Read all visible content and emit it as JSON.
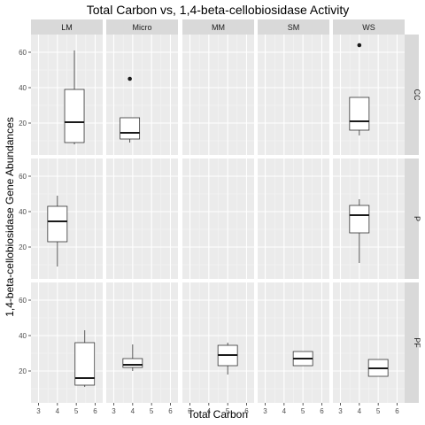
{
  "chart_data": {
    "type": "box",
    "title": "Total Carbon vs, 1,4-beta-cellobiosidase Activity",
    "xlabel": "Total Carbon",
    "ylabel": "1,4-beta-cellobiosidase Gene Abundances",
    "xlim": [
      2.6,
      6.4
    ],
    "ylim": [
      2,
      70
    ],
    "x_ticks": [
      3,
      4,
      5,
      6
    ],
    "y_ticks": [
      20,
      40,
      60
    ],
    "columns": [
      "LM",
      "Micro",
      "MM",
      "SM",
      "WS"
    ],
    "rows": [
      "CC",
      "P",
      "PF"
    ],
    "grid": true,
    "boxes": [
      {
        "row": "CC",
        "col": "LM",
        "x": 4.9,
        "min": 8,
        "q1": 9,
        "median": 20.5,
        "q3": 39,
        "max": 61,
        "outliers": []
      },
      {
        "row": "CC",
        "col": "Micro",
        "x": 3.85,
        "min": 9,
        "q1": 11,
        "median": 14.5,
        "q3": 23,
        "max": 23,
        "outliers": [
          45
        ]
      },
      {
        "row": "CC",
        "col": "WS",
        "x": 4.0,
        "min": 13,
        "q1": 16,
        "median": 21,
        "q3": 34.5,
        "max": 34.5,
        "outliers": [
          64
        ]
      },
      {
        "row": "P",
        "col": "LM",
        "x": 4.0,
        "min": 9,
        "q1": 23,
        "median": 34.5,
        "q3": 43,
        "max": 49,
        "outliers": []
      },
      {
        "row": "P",
        "col": "WS",
        "x": 4.0,
        "min": 11,
        "q1": 28,
        "median": 38,
        "q3": 43.5,
        "max": 47,
        "outliers": []
      },
      {
        "row": "PF",
        "col": "LM",
        "x": 5.45,
        "min": 11,
        "q1": 12,
        "median": 16,
        "q3": 36,
        "max": 43,
        "outliers": []
      },
      {
        "row": "PF",
        "col": "Micro",
        "x": 4.0,
        "min": 20,
        "q1": 22,
        "median": 23.5,
        "q3": 27,
        "max": 35,
        "outliers": []
      },
      {
        "row": "PF",
        "col": "MM",
        "x": 5.0,
        "min": 18,
        "q1": 23,
        "median": 29,
        "q3": 34.5,
        "max": 36,
        "outliers": []
      },
      {
        "row": "PF",
        "col": "SM",
        "x": 5.0,
        "min": 23,
        "q1": 23,
        "median": 27,
        "q3": 31,
        "max": 31,
        "outliers": []
      },
      {
        "row": "PF",
        "col": "WS",
        "x": 5.0,
        "min": 17,
        "q1": 17,
        "median": 21.5,
        "q3": 26.5,
        "max": 26.5,
        "outliers": []
      }
    ]
  }
}
